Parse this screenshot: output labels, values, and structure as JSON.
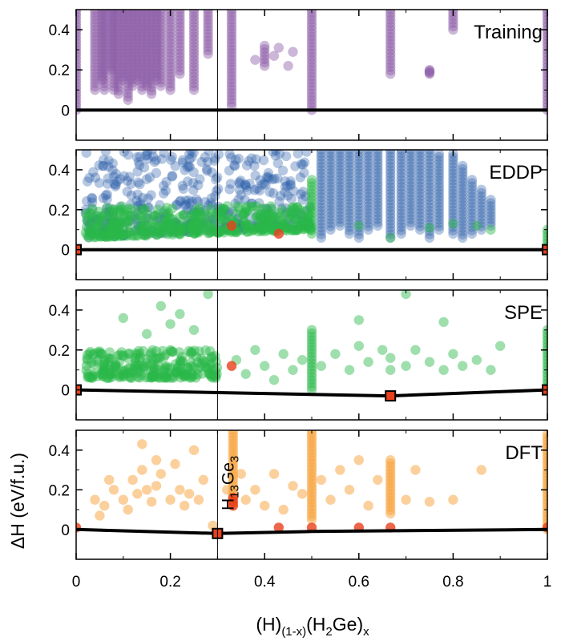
{
  "chart_data": {
    "type": "scatter",
    "xlabel_base": "(H)",
    "xlabel_sub1": "(1-x)",
    "xlabel_mid": "(H",
    "xlabel_sub2": "2",
    "xlabel_tail": "Ge)",
    "xlabel_sub3": "x",
    "ylabel": "ΔH (eV/f.u.)",
    "xlim": [
      0,
      1
    ],
    "ylim": [
      -0.15,
      0.5
    ],
    "x_ticks": [
      "0",
      "0.2",
      "0.4",
      "0.6",
      "0.8",
      "1"
    ],
    "x_tick_values": [
      0,
      0.2,
      0.4,
      0.6,
      0.8,
      1
    ],
    "y_ticks": [
      "0",
      "0.2",
      "0.4"
    ],
    "y_tick_values": [
      0,
      0.2,
      0.4
    ],
    "vertical_line_x": 0.3,
    "annotation": {
      "base": "H",
      "sub1": "13",
      "mid": "Ge",
      "sub2": "3",
      "x": 0.3
    },
    "colors": {
      "training": "#8e5fa8",
      "eddp": "#2a5fa8",
      "green": "#2bb94a",
      "dft": "#f7a23a",
      "red": "#e8401c",
      "hull_marker": "#e8401c"
    },
    "panels": [
      {
        "name": "training",
        "label": "Training",
        "series": [
          {
            "name": "training",
            "color": "#8e5fa8",
            "opacity": 0.45,
            "columns": [
              [
                0,
                0.0,
                0.5
              ],
              [
                0.04,
                0.1,
                0.5
              ],
              [
                0.055,
                0.15,
                0.5
              ],
              [
                0.06,
                0.1,
                0.5
              ],
              [
                0.075,
                0.2,
                0.5
              ],
              [
                0.08,
                0.1,
                0.5
              ],
              [
                0.09,
                0.08,
                0.5
              ],
              [
                0.1,
                0.15,
                0.5
              ],
              [
                0.11,
                0.05,
                0.5
              ],
              [
                0.12,
                0.12,
                0.5
              ],
              [
                0.13,
                0.15,
                0.5
              ],
              [
                0.14,
                0.1,
                0.5
              ],
              [
                0.15,
                0.12,
                0.5
              ],
              [
                0.16,
                0.08,
                0.5
              ],
              [
                0.17,
                0.15,
                0.5
              ],
              [
                0.18,
                0.12,
                0.5
              ],
              [
                0.2,
                0.1,
                0.5
              ],
              [
                0.22,
                0.18,
                0.5
              ],
              [
                0.25,
                0.1,
                0.5
              ],
              [
                0.28,
                0.28,
                0.5
              ],
              [
                0.33,
                0.02,
                0.5
              ],
              [
                0.4,
                0.22,
                0.32
              ],
              [
                0.5,
                0.0,
                0.5
              ],
              [
                0.667,
                0.18,
                0.5
              ],
              [
                0.75,
                0.18,
                0.2
              ],
              [
                0.8,
                0.4,
                0.5
              ],
              [
                1,
                0.0,
                0.5
              ]
            ],
            "points": [
              [
                0.38,
                0.25
              ],
              [
                0.42,
                0.27
              ],
              [
                0.43,
                0.31
              ],
              [
                0.45,
                0.22
              ],
              [
                0.46,
                0.29
              ]
            ]
          }
        ],
        "hull": [
          [
            0,
            0
          ],
          [
            1,
            0
          ]
        ],
        "hull_markers": []
      },
      {
        "name": "eddp",
        "label": "EDDP",
        "series": [
          {
            "name": "eddp",
            "color": "#2a5fa8",
            "opacity": 0.35,
            "band": {
              "x0": 0.02,
              "x1": 0.5,
              "ymin_at_x0": 0.06,
              "ymin_at_x1": 0.12,
              "ymax": 0.5
            },
            "columns": [
              [
                0.52,
                0.06,
                0.5
              ],
              [
                0.54,
                0.1,
                0.5
              ],
              [
                0.56,
                0.12,
                0.5
              ],
              [
                0.58,
                0.08,
                0.5
              ],
              [
                0.6,
                0.06,
                0.5
              ],
              [
                0.62,
                0.1,
                0.5
              ],
              [
                0.64,
                0.12,
                0.5
              ],
              [
                0.667,
                0.06,
                0.5
              ],
              [
                0.69,
                0.08,
                0.5
              ],
              [
                0.71,
                0.12,
                0.5
              ],
              [
                0.73,
                0.1,
                0.5
              ],
              [
                0.75,
                0.06,
                0.5
              ],
              [
                0.77,
                0.1,
                0.48
              ],
              [
                0.8,
                0.08,
                0.48
              ],
              [
                0.82,
                0.06,
                0.42
              ],
              [
                0.84,
                0.08,
                0.35
              ],
              [
                0.86,
                0.1,
                0.3
              ],
              [
                0.88,
                0.12,
                0.25
              ]
            ],
            "points": []
          },
          {
            "name": "green",
            "color": "#2bb94a",
            "opacity": 0.45,
            "band": {
              "x0": 0.02,
              "x1": 0.5,
              "ymin_at_x0": 0.06,
              "ymin_at_x1": 0.1,
              "ymax": 0.22
            },
            "columns": [
              [
                0.5,
                0.08,
                0.35
              ],
              [
                1,
                0.0,
                0.1
              ]
            ],
            "points": [
              [
                0.6,
                0.12
              ],
              [
                0.667,
                0.06
              ],
              [
                0.75,
                0.11
              ],
              [
                0.8,
                0.13
              ],
              [
                0.85,
                0.12
              ],
              [
                0.88,
                0.1
              ]
            ]
          }
        ],
        "red_points": [
          [
            0.33,
            0.12
          ],
          [
            0.43,
            0.08
          ]
        ],
        "hull": [
          [
            0,
            0
          ],
          [
            1,
            0
          ]
        ],
        "hull_markers": [
          [
            0,
            0
          ],
          [
            1,
            0
          ]
        ]
      },
      {
        "name": "spe",
        "label": "SPE",
        "series": [
          {
            "name": "green",
            "color": "#2bb94a",
            "opacity": 0.45,
            "band": {
              "x0": 0.02,
              "x1": 0.3,
              "ymin_at_x0": 0.06,
              "ymin_at_x1": 0.06,
              "ymax": 0.2
            },
            "columns": [
              [
                0.5,
                0.0,
                0.3
              ],
              [
                1,
                0.0,
                0.3
              ]
            ],
            "points": [
              [
                0.34,
                0.15
              ],
              [
                0.36,
                0.08
              ],
              [
                0.38,
                0.2
              ],
              [
                0.4,
                0.12
              ],
              [
                0.42,
                0.05
              ],
              [
                0.44,
                0.18
              ],
              [
                0.46,
                0.1
              ],
              [
                0.48,
                0.15
              ],
              [
                0.52,
                0.12
              ],
              [
                0.55,
                0.18
              ],
              [
                0.58,
                0.1
              ],
              [
                0.6,
                0.22
              ],
              [
                0.62,
                0.14
              ],
              [
                0.65,
                0.2
              ],
              [
                0.667,
                0.1
              ],
              [
                0.667,
                0.16
              ],
              [
                0.7,
                0.12
              ],
              [
                0.72,
                0.2
              ],
              [
                0.75,
                0.14
              ],
              [
                0.78,
                0.1
              ],
              [
                0.8,
                0.18
              ],
              [
                0.82,
                0.12
              ],
              [
                0.85,
                0.15
              ],
              [
                0.88,
                0.1
              ],
              [
                0.9,
                0.22
              ],
              [
                0.7,
                0.48
              ],
              [
                0.78,
                0.34
              ],
              [
                0.6,
                0.35
              ],
              [
                0.2,
                0.33
              ],
              [
                0.15,
                0.28
              ],
              [
                0.25,
                0.3
              ],
              [
                0.1,
                0.36
              ],
              [
                0.18,
                0.42
              ],
              [
                0.28,
                0.48
              ],
              [
                0.22,
                0.38
              ]
            ]
          }
        ],
        "red_points": [
          [
            0.33,
            0.12
          ]
        ],
        "hull": [
          [
            0,
            0
          ],
          [
            0.667,
            -0.03
          ],
          [
            1,
            0
          ]
        ],
        "hull_markers": [
          [
            0,
            0
          ],
          [
            0.667,
            -0.03
          ],
          [
            1,
            0
          ]
        ]
      },
      {
        "name": "dft",
        "label": "DFT",
        "series": [
          {
            "name": "dft",
            "color": "#f7a23a",
            "opacity": 0.5,
            "columns": [
              [
                0.333,
                0.12,
                0.5
              ],
              [
                0.5,
                0.05,
                0.5
              ],
              [
                0.667,
                0.08,
                0.35
              ],
              [
                1,
                0.0,
                0.48
              ]
            ],
            "points": [
              [
                0.04,
                0.15
              ],
              [
                0.06,
                0.12
              ],
              [
                0.08,
                0.2
              ],
              [
                0.1,
                0.15
              ],
              [
                0.12,
                0.25
              ],
              [
                0.13,
                0.18
              ],
              [
                0.14,
                0.3
              ],
              [
                0.15,
                0.2
              ],
              [
                0.16,
                0.14
              ],
              [
                0.17,
                0.22
              ],
              [
                0.18,
                0.28
              ],
              [
                0.2,
                0.15
              ],
              [
                0.21,
                0.33
              ],
              [
                0.22,
                0.2
              ],
              [
                0.24,
                0.18
              ],
              [
                0.25,
                0.4
              ],
              [
                0.26,
                0.15
              ],
              [
                0.27,
                0.25
              ],
              [
                0.14,
                0.43
              ],
              [
                0.17,
                0.35
              ],
              [
                0.23,
                0.12
              ],
              [
                0.11,
                0.1
              ],
              [
                0.07,
                0.25
              ],
              [
                0.05,
                0.07
              ],
              [
                0.36,
                0.15
              ],
              [
                0.38,
                0.2
              ],
              [
                0.4,
                0.12
              ],
              [
                0.42,
                0.28
              ],
              [
                0.44,
                0.1
              ],
              [
                0.46,
                0.22
              ],
              [
                0.48,
                0.18
              ],
              [
                0.52,
                0.25
              ],
              [
                0.54,
                0.15
              ],
              [
                0.56,
                0.3
              ],
              [
                0.58,
                0.2
              ],
              [
                0.6,
                0.35
              ],
              [
                0.62,
                0.12
              ],
              [
                0.64,
                0.25
              ],
              [
                0.7,
                0.15
              ],
              [
                0.72,
                0.3
              ],
              [
                0.75,
                0.14
              ],
              [
                0.8,
                0.15
              ],
              [
                0.86,
                0.3
              ],
              [
                0.29,
                0.02
              ],
              [
                0.32,
                0.2
              ],
              [
                0.35,
                0.28
              ]
            ]
          }
        ],
        "red_points": [
          [
            0.333,
            0.12
          ],
          [
            0.333,
            0.14
          ],
          [
            0.333,
            0.16
          ],
          [
            0.43,
            0.01
          ],
          [
            0.5,
            0.01
          ],
          [
            0.6,
            0.01
          ],
          [
            0.667,
            0.01
          ],
          [
            1,
            0.01
          ],
          [
            0,
            0.01
          ]
        ],
        "hull": [
          [
            0,
            0
          ],
          [
            0.3,
            -0.02
          ],
          [
            0.5,
            -0.01
          ],
          [
            1,
            0
          ]
        ],
        "hull_markers": [
          [
            0.3,
            -0.02
          ]
        ]
      }
    ]
  }
}
